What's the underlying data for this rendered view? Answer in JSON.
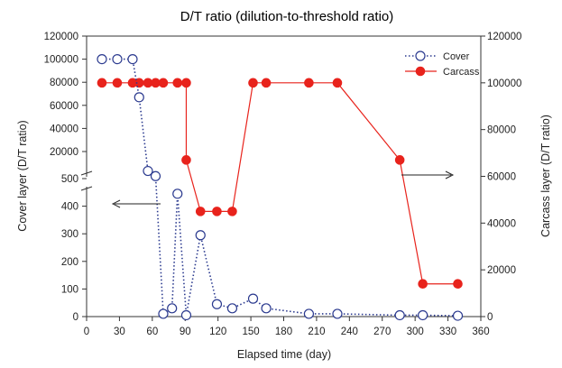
{
  "chart_data": {
    "type": "line",
    "title": "D/T ratio (dilution-to-threshold ratio)",
    "xlabel": "Elapsed time (day)",
    "ylabel_left": "Cover layer (D/T ratio)",
    "ylabel_right": "Carcass layer (D/T ratio)",
    "xlim": [
      0,
      360
    ],
    "x_ticks": [
      0,
      30,
      60,
      90,
      120,
      150,
      180,
      210,
      240,
      270,
      300,
      330,
      360
    ],
    "y_left_lower_range": [
      0,
      500
    ],
    "y_left_lower_ticks": [
      0,
      100,
      200,
      300,
      400,
      500
    ],
    "y_left_upper_range": [
      0,
      120000
    ],
    "y_left_upper_ticks": [
      20000,
      40000,
      60000,
      80000,
      100000,
      120000
    ],
    "y_right_range": [
      0,
      120000
    ],
    "y_right_ticks": [
      0,
      20000,
      40000,
      60000,
      80000,
      100000,
      120000
    ],
    "axis_break": "left axis broken between 500 and 20000",
    "legend_position": "top-right",
    "series": [
      {
        "name": "Cover",
        "axis": "left",
        "style": "dotted line, open circle markers",
        "color": "#2b3a8f",
        "points": [
          [
            14,
            100000
          ],
          [
            28,
            100000
          ],
          [
            42,
            100000
          ],
          [
            48,
            67000
          ],
          [
            56,
            5000
          ],
          [
            63,
            1000
          ],
          [
            70,
            10
          ],
          [
            78,
            30
          ],
          [
            83,
            445
          ],
          [
            91,
            5
          ],
          [
            104,
            295
          ],
          [
            119,
            45
          ],
          [
            133,
            30
          ],
          [
            152,
            65
          ],
          [
            164,
            30
          ],
          [
            203,
            10
          ],
          [
            229,
            10
          ],
          [
            286,
            5
          ],
          [
            307,
            5
          ],
          [
            339,
            3
          ]
        ]
      },
      {
        "name": "Carcass",
        "axis": "right",
        "style": "solid line, filled circle markers",
        "color": "#e8231c",
        "points": [
          [
            14,
            100000
          ],
          [
            28,
            100000
          ],
          [
            42,
            100000
          ],
          [
            48,
            100000
          ],
          [
            56,
            100000
          ],
          [
            63,
            100000
          ],
          [
            70,
            100000
          ],
          [
            83,
            100000
          ],
          [
            91,
            100000
          ],
          [
            91,
            67000
          ],
          [
            104,
            45000
          ],
          [
            119,
            45000
          ],
          [
            133,
            45000
          ],
          [
            152,
            100000
          ],
          [
            164,
            100000
          ],
          [
            203,
            100000
          ],
          [
            229,
            100000
          ],
          [
            286,
            67000
          ],
          [
            307,
            14000
          ],
          [
            339,
            14000
          ]
        ]
      }
    ],
    "annotations": [
      {
        "type": "arrow",
        "direction": "left",
        "meaning": "Cover uses left axis"
      },
      {
        "type": "arrow",
        "direction": "right",
        "meaning": "Carcass uses right axis"
      }
    ]
  }
}
